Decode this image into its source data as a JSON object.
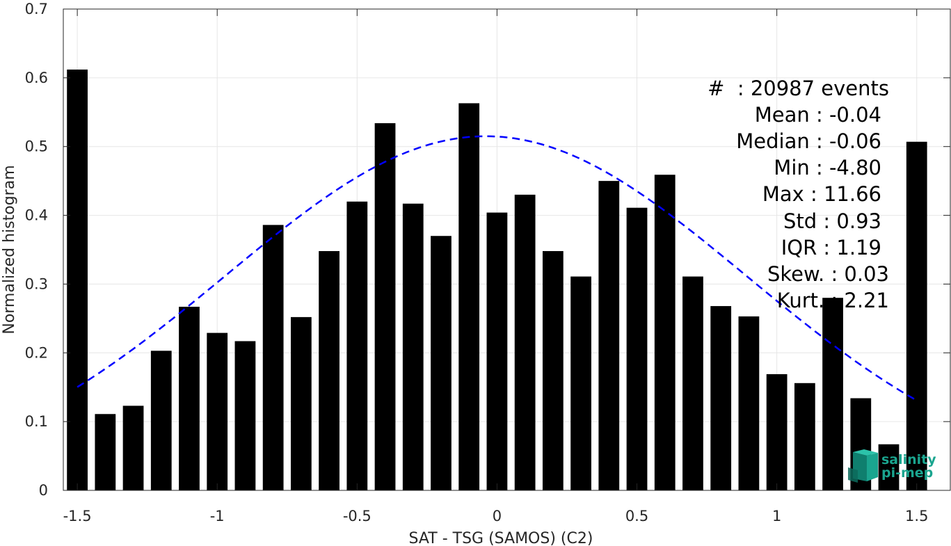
{
  "chart_data": {
    "type": "bar",
    "xlabel": "SAT - TSG (SAMOS) (C2)",
    "ylabel": "Normalized histogram",
    "xlim": [
      -1.55,
      1.62
    ],
    "ylim": [
      0,
      0.7
    ],
    "xticks": [
      -1.5,
      -1,
      -0.5,
      0,
      0.5,
      1,
      1.5
    ],
    "xtick_labels": [
      "-1.5",
      "-1",
      "-0.5",
      "0",
      "0.5",
      "1",
      "1.5"
    ],
    "yticks": [
      0,
      0.1,
      0.2,
      0.3,
      0.4,
      0.5,
      0.6,
      0.7
    ],
    "ytick_labels": [
      "0",
      "0.1",
      "0.2",
      "0.3",
      "0.4",
      "0.5",
      "0.6",
      "0.7"
    ],
    "grid": true,
    "bar_color": "#000000",
    "fit_color": "#0000ff",
    "series": [
      {
        "type": "bar",
        "x": [
          -1.5,
          -1.4,
          -1.3,
          -1.2,
          -1.1,
          -1.0,
          -0.9,
          -0.8,
          -0.7,
          -0.6,
          -0.5,
          -0.4,
          -0.3,
          -0.2,
          -0.1,
          0.0,
          0.1,
          0.2,
          0.3,
          0.4,
          0.5,
          0.6,
          0.7,
          0.8,
          0.9,
          1.0,
          1.1,
          1.2,
          1.3,
          1.4,
          1.5
        ],
        "values": [
          0.612,
          0.111,
          0.123,
          0.203,
          0.267,
          0.229,
          0.217,
          0.386,
          0.252,
          0.348,
          0.42,
          0.534,
          0.417,
          0.37,
          0.563,
          0.404,
          0.43,
          0.348,
          0.311,
          0.45,
          0.411,
          0.459,
          0.311,
          0.268,
          0.253,
          0.169,
          0.156,
          0.28,
          0.134,
          0.067,
          0.507
        ]
      },
      {
        "type": "line",
        "style": "dashed",
        "mean": -0.04,
        "std": 0.93,
        "peak": 0.515,
        "x_range": [
          -1.5,
          1.5
        ]
      }
    ],
    "annotations": [
      "#  : 20987 events",
      "Mean : -0.04",
      "Median : -0.06",
      "Min : -4.80",
      "Max : 11.66",
      "Std : 0.93",
      "IQR : 1.19",
      "Skew. : 0.03",
      "Kurt. : 2.21"
    ]
  },
  "logo": {
    "line1": "salinity",
    "line2": "pi-mep",
    "color": "#1aa58f"
  }
}
